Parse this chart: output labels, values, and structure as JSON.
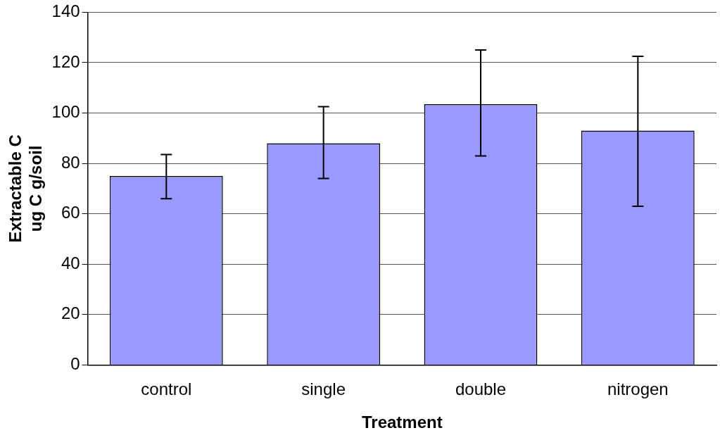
{
  "chart_data": {
    "type": "bar",
    "xlabel": "Treatment",
    "ylabel": "Extractable C\nug C g/soil",
    "categories": [
      "control",
      "single",
      "double",
      "nitrogen"
    ],
    "values": [
      75,
      88,
      103.5,
      93
    ],
    "color": "#9999ff",
    "errors": [
      [
        66,
        83.5
      ],
      [
        74,
        102.5
      ],
      [
        83,
        125
      ],
      [
        63,
        122.5
      ]
    ],
    "ylim": [
      0,
      140
    ],
    "yticks": [
      0,
      20,
      40,
      60,
      80,
      100,
      120,
      140
    ],
    "grid": "y"
  }
}
